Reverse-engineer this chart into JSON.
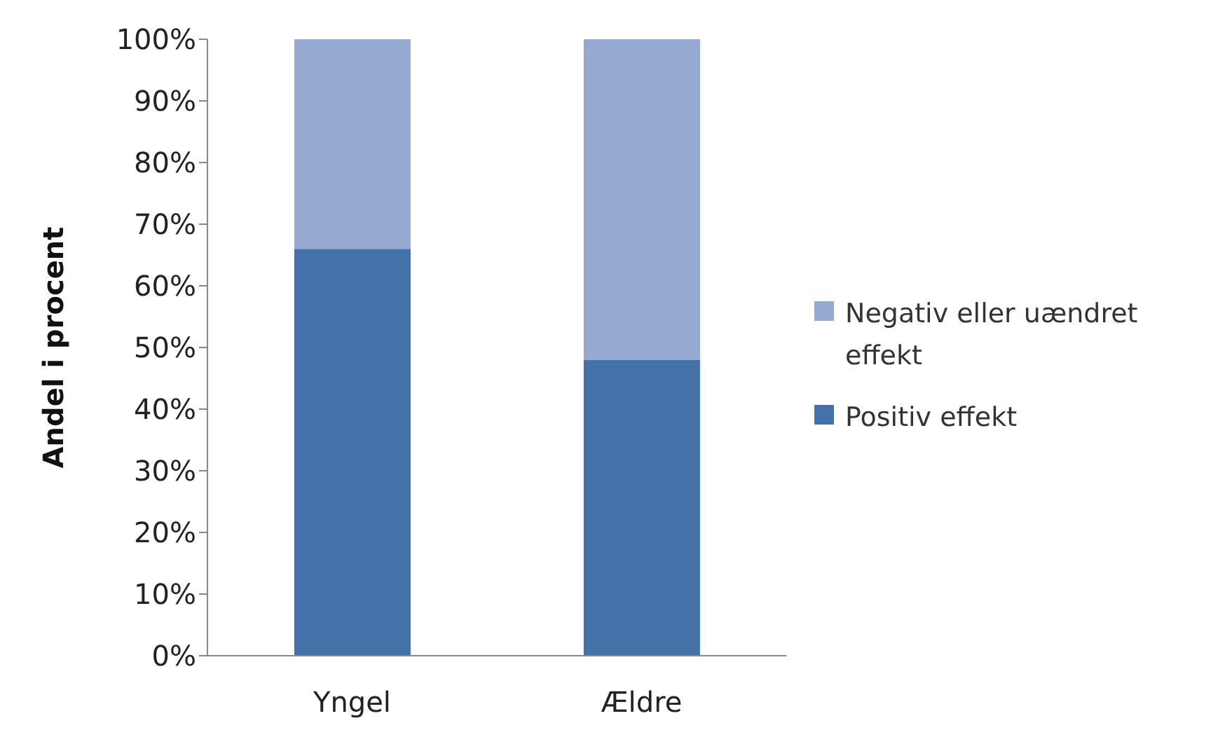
{
  "chart_data": {
    "type": "bar",
    "stacked": true,
    "categories": [
      "Yngel",
      "Ældre"
    ],
    "ylabel": "Andel i procent",
    "series": [
      {
        "name": "Positiv effekt",
        "color": "#4472a8",
        "values": [
          66,
          48
        ]
      },
      {
        "name": "Negativ eller uændret effekt",
        "color": "#95a9d1",
        "values": [
          34,
          52
        ]
      }
    ],
    "ylim": [
      0,
      100
    ],
    "yticks": [
      {
        "value": 0,
        "label": "0%"
      },
      {
        "value": 10,
        "label": "10%"
      },
      {
        "value": 20,
        "label": "20%"
      },
      {
        "value": 30,
        "label": "30%"
      },
      {
        "value": 40,
        "label": "40%"
      },
      {
        "value": 50,
        "label": "50%"
      },
      {
        "value": 60,
        "label": "60%"
      },
      {
        "value": 70,
        "label": "70%"
      },
      {
        "value": 80,
        "label": "80%"
      },
      {
        "value": 90,
        "label": "90%"
      },
      {
        "value": 100,
        "label": "100%"
      }
    ],
    "grid": false,
    "legend": "right"
  }
}
